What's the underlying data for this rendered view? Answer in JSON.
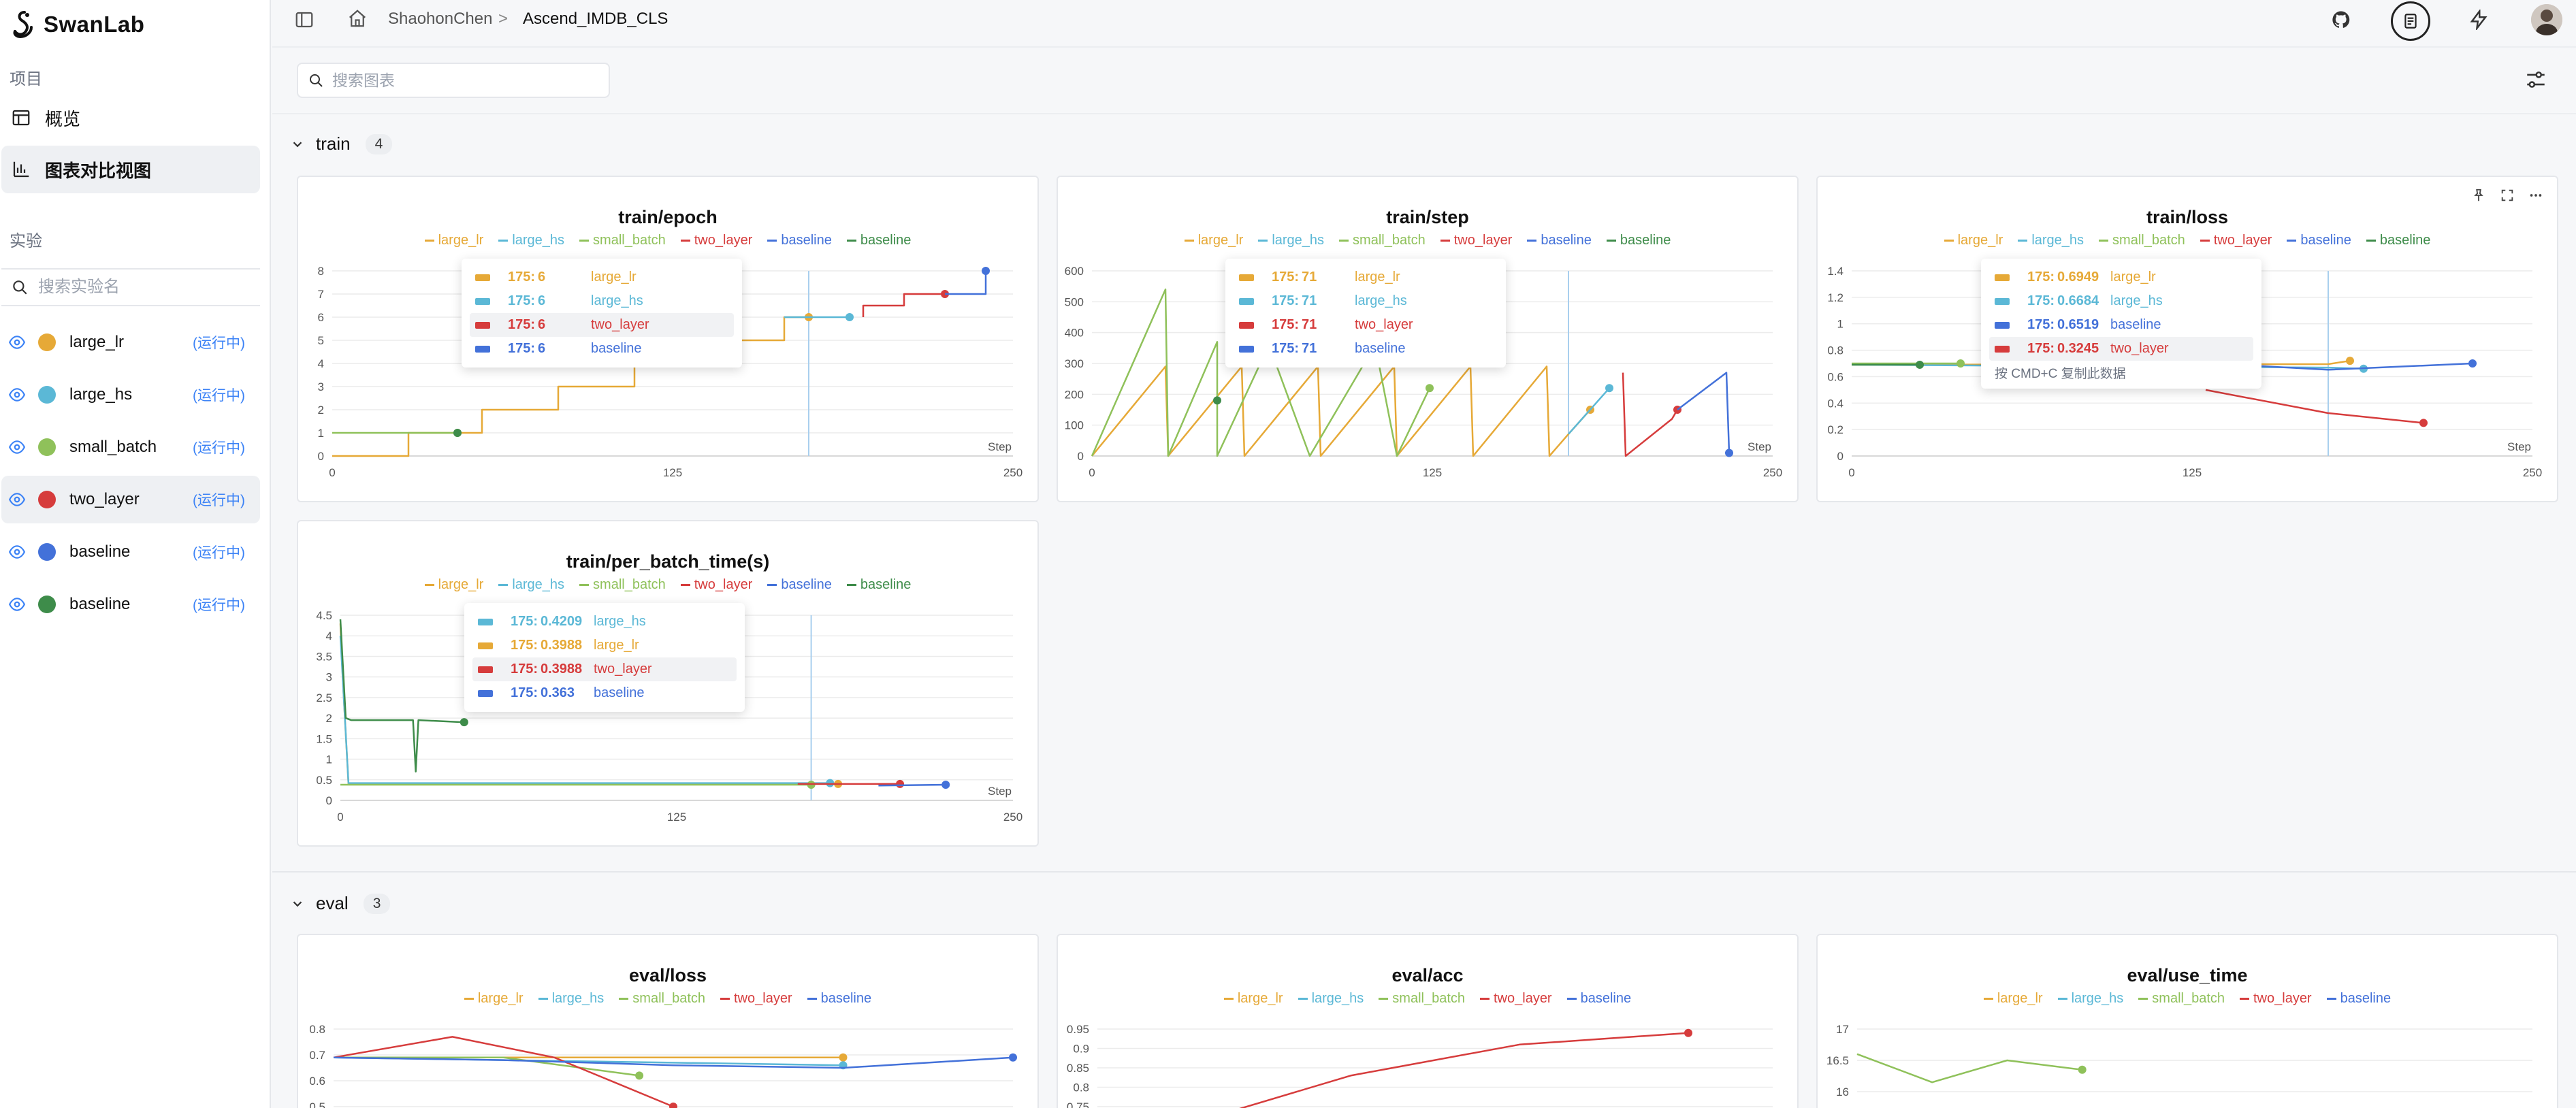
{
  "app": {
    "name": "SwanLab"
  },
  "sidebar": {
    "project_label": "项目",
    "nav": [
      {
        "label": "概览",
        "icon": "table-icon"
      },
      {
        "label": "图表对比视图",
        "icon": "bar-chart-icon"
      }
    ],
    "experiments_label": "实验",
    "search_placeholder": "搜索实验名",
    "experiments": [
      {
        "name": "large_lr",
        "color": "#e6a937",
        "status": "(运行中)"
      },
      {
        "name": "large_hs",
        "color": "#5bb8d6",
        "status": "(运行中)"
      },
      {
        "name": "small_batch",
        "color": "#8fc15a",
        "status": "(运行中)"
      },
      {
        "name": "two_layer",
        "color": "#d63c3c",
        "status": "(运行中)"
      },
      {
        "name": "baseline",
        "color": "#4371d9",
        "status": "(运行中)"
      },
      {
        "name": "baseline",
        "color": "#3e8c4a",
        "status": "(运行中)"
      }
    ]
  },
  "header": {
    "breadcrumb": [
      "ShaohonChen",
      "Ascend_IMDB_CLS"
    ],
    "separator": ">"
  },
  "toolbar": {
    "search_placeholder": "搜索图表"
  },
  "groups": [
    {
      "name": "train",
      "count": "4"
    },
    {
      "name": "eval",
      "count": "3"
    }
  ],
  "colors": {
    "large_lr": "#e6a937",
    "large_hs": "#5bb8d6",
    "small_batch": "#8fc15a",
    "two_layer": "#d63c3c",
    "baseline": "#4371d9",
    "baseline2": "#3e8c4a",
    "crosshair": "#a9cfee",
    "grid": "#ececec"
  },
  "charts": {
    "epoch": {
      "title": "train/epoch",
      "legend": [
        "large_lr",
        "large_hs",
        "small_batch",
        "two_layer",
        "baseline",
        "baseline"
      ],
      "tooltip": [
        {
          "step": "175:",
          "value": "6",
          "name": "large_lr",
          "color": "#e6a937"
        },
        {
          "step": "175:",
          "value": "6",
          "name": "large_hs",
          "color": "#5bb8d6"
        },
        {
          "step": "175:",
          "value": "6",
          "name": "two_layer",
          "color": "#d63c3c"
        },
        {
          "step": "175:",
          "value": "6",
          "name": "baseline",
          "color": "#4371d9"
        }
      ]
    },
    "step": {
      "title": "train/step",
      "legend": [
        "large_lr",
        "large_hs",
        "small_batch",
        "two_layer",
        "baseline",
        "baseline"
      ],
      "tooltip": [
        {
          "step": "175:",
          "value": "71",
          "name": "large_lr",
          "color": "#e6a937"
        },
        {
          "step": "175:",
          "value": "71",
          "name": "large_hs",
          "color": "#5bb8d6"
        },
        {
          "step": "175:",
          "value": "71",
          "name": "two_layer",
          "color": "#d63c3c"
        },
        {
          "step": "175:",
          "value": "71",
          "name": "baseline",
          "color": "#4371d9"
        }
      ]
    },
    "loss": {
      "title": "train/loss",
      "legend": [
        "large_lr",
        "large_hs",
        "small_batch",
        "two_layer",
        "baseline",
        "baseline"
      ],
      "tooltip": [
        {
          "step": "175:",
          "value": "0.6949",
          "name": "large_lr",
          "color": "#e6a937"
        },
        {
          "step": "175:",
          "value": "0.6684",
          "name": "large_hs",
          "color": "#5bb8d6"
        },
        {
          "step": "175:",
          "value": "0.6519",
          "name": "baseline",
          "color": "#4371d9"
        },
        {
          "step": "175:",
          "value": "0.3245",
          "name": "two_layer",
          "color": "#d63c3c"
        }
      ],
      "hint": "按 CMD+C 复制此数据"
    },
    "pbt": {
      "title": "train/per_batch_time(s)",
      "legend": [
        "large_lr",
        "large_hs",
        "small_batch",
        "two_layer",
        "baseline",
        "baseline"
      ],
      "tooltip": [
        {
          "step": "175:",
          "value": "0.4209",
          "name": "large_hs",
          "color": "#5bb8d6"
        },
        {
          "step": "175:",
          "value": "0.3988",
          "name": "large_lr",
          "color": "#e6a937"
        },
        {
          "step": "175:",
          "value": "0.3988",
          "name": "two_layer",
          "color": "#d63c3c"
        },
        {
          "step": "175:",
          "value": "0.363",
          "name": "baseline",
          "color": "#4371d9"
        }
      ]
    },
    "eval_loss": {
      "title": "eval/loss",
      "legend": [
        "large_lr",
        "large_hs",
        "small_batch",
        "two_layer",
        "baseline"
      ]
    },
    "eval_acc": {
      "title": "eval/acc",
      "legend": [
        "large_lr",
        "large_hs",
        "small_batch",
        "two_layer",
        "baseline"
      ]
    },
    "eval_time": {
      "title": "eval/use_time",
      "legend": [
        "large_lr",
        "large_hs",
        "small_batch",
        "two_layer",
        "baseline"
      ]
    }
  },
  "chart_data": [
    {
      "type": "line",
      "title": "train/epoch",
      "xlabel": "Step",
      "xlim": [
        0,
        250
      ],
      "ylim": [
        0,
        8
      ],
      "xticks": [
        "0",
        "125",
        "250"
      ],
      "yticks": [
        "0",
        "1",
        "2",
        "3",
        "4",
        "5",
        "6",
        "7",
        "8"
      ],
      "crosshair_x": 175,
      "series": [
        {
          "name": "large_lr",
          "color": "#e6a937",
          "x": [
            0,
            28,
            28,
            55,
            55,
            83,
            83,
            111,
            111,
            139,
            139,
            166,
            166,
            175
          ],
          "y": [
            0,
            0,
            1,
            1,
            2,
            2,
            3,
            3,
            4,
            4,
            5,
            5,
            6,
            6
          ]
        },
        {
          "name": "large_hs",
          "color": "#5bb8d6",
          "x": [
            166,
            190
          ],
          "y": [
            6,
            6
          ]
        },
        {
          "name": "small_batch",
          "color": "#8fc15a",
          "x": [
            0,
            46
          ],
          "y": [
            1,
            1
          ]
        },
        {
          "name": "two_layer",
          "color": "#d63c3c",
          "x": [
            195,
            195,
            210,
            210,
            225
          ],
          "y": [
            6,
            6.5,
            6.5,
            7,
            7
          ]
        },
        {
          "name": "baseline",
          "color": "#4371d9",
          "x": [
            225,
            225,
            240,
            240
          ],
          "y": [
            7,
            7,
            7,
            8
          ]
        },
        {
          "name": "baseline",
          "color": "#3e8c4a",
          "x": [
            46
          ],
          "y": [
            1
          ]
        }
      ]
    },
    {
      "type": "line",
      "title": "train/step",
      "xlabel": "Step",
      "xlim": [
        0,
        250
      ],
      "ylim": [
        0,
        600
      ],
      "xticks": [
        "0",
        "125",
        "250"
      ],
      "yticks": [
        "0",
        "100",
        "200",
        "300",
        "400",
        "500",
        "600"
      ],
      "crosshair_x": 175,
      "series": [
        {
          "name": "large_lr",
          "color": "#e6a937",
          "x": [
            0,
            27,
            28,
            55,
            56,
            83,
            84,
            111,
            112,
            139,
            140,
            167,
            168,
            175,
            183
          ],
          "y": [
            0,
            290,
            0,
            290,
            0,
            290,
            0,
            290,
            0,
            290,
            0,
            290,
            0,
            71,
            150
          ]
        },
        {
          "name": "large_hs",
          "color": "#5bb8d6",
          "x": [
            175,
            190
          ],
          "y": [
            71,
            220
          ]
        },
        {
          "name": "small_batch",
          "color": "#8fc15a",
          "x": [
            0,
            27,
            28,
            46,
            46,
            65,
            80,
            104,
            112,
            124
          ],
          "y": [
            0,
            540,
            0,
            370,
            0,
            360,
            0,
            360,
            0,
            220
          ]
        },
        {
          "name": "two_layer",
          "color": "#d63c3c",
          "x": [
            195,
            196,
            213,
            215
          ],
          "y": [
            270,
            0,
            120,
            150
          ]
        },
        {
          "name": "baseline",
          "color": "#4371d9",
          "x": [
            215,
            233,
            234
          ],
          "y": [
            150,
            270,
            10
          ]
        },
        {
          "name": "baseline",
          "color": "#3e8c4a",
          "x": [
            46
          ],
          "y": [
            180
          ]
        }
      ]
    },
    {
      "type": "line",
      "title": "train/loss",
      "xlabel": "Step",
      "xlim": [
        0,
        250
      ],
      "ylim": [
        0,
        1.4
      ],
      "xticks": [
        "0",
        "125",
        "250"
      ],
      "yticks": [
        "0",
        "0.2",
        "0.4",
        "0.6",
        "0.8",
        "1",
        "1.2",
        "1.4"
      ],
      "crosshair_x": 175,
      "series": [
        {
          "name": "large_lr",
          "color": "#e6a937",
          "x": [
            0,
            175,
            183
          ],
          "y": [
            0.69,
            0.6949,
            0.72
          ]
        },
        {
          "name": "large_hs",
          "color": "#5bb8d6",
          "x": [
            0,
            175,
            188
          ],
          "y": [
            0.69,
            0.6684,
            0.66
          ]
        },
        {
          "name": "small_batch",
          "color": "#8fc15a",
          "x": [
            0,
            40
          ],
          "y": [
            0.7,
            0.7
          ]
        },
        {
          "name": "two_layer",
          "color": "#d63c3c",
          "x": [
            130,
            175,
            210
          ],
          "y": [
            0.5,
            0.3245,
            0.25
          ]
        },
        {
          "name": "baseline",
          "color": "#4371d9",
          "x": [
            150,
            175,
            228
          ],
          "y": [
            0.68,
            0.6519,
            0.7
          ]
        },
        {
          "name": "baseline",
          "color": "#3e8c4a",
          "x": [
            0,
            25
          ],
          "y": [
            0.69,
            0.69
          ]
        }
      ]
    },
    {
      "type": "line",
      "title": "train/per_batch_time(s)",
      "xlabel": "Step",
      "xlim": [
        0,
        250
      ],
      "ylim": [
        0,
        4.5
      ],
      "xticks": [
        "0",
        "125",
        "250"
      ],
      "yticks": [
        "0",
        "0.5",
        "1",
        "1.5",
        "2",
        "2.5",
        "3",
        "3.5",
        "4",
        "4.5"
      ],
      "crosshair_x": 175,
      "series": [
        {
          "name": "large_lr",
          "color": "#e6a937",
          "x": [
            0,
            1,
            3,
            175,
            185
          ],
          "y": [
            4.3,
            2.8,
            0.4,
            0.3988,
            0.4
          ]
        },
        {
          "name": "large_hs",
          "color": "#5bb8d6",
          "x": [
            0,
            3,
            175,
            182
          ],
          "y": [
            4.0,
            0.42,
            0.4209,
            0.42
          ]
        },
        {
          "name": "small_batch",
          "color": "#8fc15a",
          "x": [
            0,
            175
          ],
          "y": [
            0.38,
            0.38
          ]
        },
        {
          "name": "two_layer",
          "color": "#d63c3c",
          "x": [
            170,
            175,
            208
          ],
          "y": [
            0.4,
            0.3988,
            0.4
          ]
        },
        {
          "name": "baseline",
          "color": "#4371d9",
          "x": [
            200,
            225
          ],
          "y": [
            0.36,
            0.38
          ]
        },
        {
          "name": "baseline",
          "color": "#3e8c4a",
          "x": [
            0,
            2,
            4,
            27,
            28,
            29,
            46
          ],
          "y": [
            4.4,
            2.0,
            1.95,
            1.95,
            0.7,
            1.95,
            1.9
          ]
        }
      ]
    },
    {
      "type": "line",
      "title": "eval/loss",
      "ylim_visible": [
        0.5,
        0.8
      ],
      "yticks": [
        "0.8",
        "0.7",
        "0.6",
        "0.5"
      ],
      "series": [
        {
          "name": "large_lr",
          "color": "#e6a937",
          "x": [
            0,
            1,
            2,
            3
          ],
          "y": [
            0.69,
            0.69,
            0.69,
            0.69
          ]
        },
        {
          "name": "large_hs",
          "color": "#5bb8d6",
          "x": [
            0,
            1,
            2,
            3
          ],
          "y": [
            0.69,
            0.68,
            0.67,
            0.66
          ]
        },
        {
          "name": "small_batch",
          "color": "#8fc15a",
          "x": [
            0,
            1,
            1.8
          ],
          "y": [
            0.69,
            0.69,
            0.62
          ]
        },
        {
          "name": "two_layer",
          "color": "#d63c3c",
          "x": [
            0,
            0.7,
            1.3,
            2.0
          ],
          "y": [
            0.69,
            0.77,
            0.69,
            0.5
          ]
        },
        {
          "name": "baseline",
          "color": "#4371d9",
          "x": [
            0,
            1,
            2,
            3,
            4
          ],
          "y": [
            0.69,
            0.68,
            0.66,
            0.65,
            0.69
          ]
        }
      ]
    },
    {
      "type": "line",
      "title": "eval/acc",
      "ylim_visible": [
        0.75,
        0.95
      ],
      "yticks": [
        "0.95",
        "0.9",
        "0.85",
        "0.8",
        "0.75"
      ],
      "series": [
        {
          "name": "two_layer",
          "color": "#d63c3c",
          "x": [
            0,
            1,
            2,
            3
          ],
          "y": [
            0.7,
            0.83,
            0.91,
            0.94
          ]
        }
      ]
    },
    {
      "type": "line",
      "title": "eval/use_time",
      "ylim_visible": [
        16,
        17
      ],
      "yticks": [
        "17",
        "16.5",
        "16"
      ],
      "series": [
        {
          "name": "small_batch",
          "color": "#8fc15a",
          "x": [
            0,
            1,
            2,
            3
          ],
          "y": [
            16.6,
            16.15,
            16.5,
            16.35
          ]
        }
      ]
    }
  ]
}
